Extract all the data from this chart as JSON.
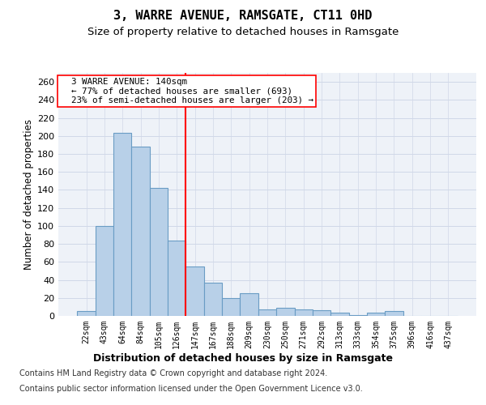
{
  "title": "3, WARRE AVENUE, RAMSGATE, CT11 0HD",
  "subtitle": "Size of property relative to detached houses in Ramsgate",
  "xlabel": "Distribution of detached houses by size in Ramsgate",
  "ylabel": "Number of detached properties",
  "categories": [
    "22sqm",
    "43sqm",
    "64sqm",
    "84sqm",
    "105sqm",
    "126sqm",
    "147sqm",
    "167sqm",
    "188sqm",
    "209sqm",
    "230sqm",
    "250sqm",
    "271sqm",
    "292sqm",
    "313sqm",
    "333sqm",
    "354sqm",
    "375sqm",
    "396sqm",
    "416sqm",
    "437sqm"
  ],
  "values": [
    5,
    100,
    203,
    188,
    142,
    84,
    55,
    37,
    20,
    25,
    7,
    9,
    7,
    6,
    4,
    1,
    4,
    5,
    0,
    0,
    0
  ],
  "bar_color": "#b8d0e8",
  "bar_edge_color": "#6a9cc4",
  "bar_edge_width": 0.8,
  "vline_x_index": 6,
  "vline_color": "red",
  "vline_linewidth": 1.5,
  "annotation_text": "  3 WARRE AVENUE: 140sqm\n  ← 77% of detached houses are smaller (693)\n  23% of semi-detached houses are larger (203) →",
  "annotation_box_color": "white",
  "annotation_box_edge_color": "red",
  "ylim": [
    0,
    270
  ],
  "yticks": [
    0,
    20,
    40,
    60,
    80,
    100,
    120,
    140,
    160,
    180,
    200,
    220,
    240,
    260
  ],
  "grid_color": "#d0d8e8",
  "background_color": "#eef2f8",
  "footer_line1": "Contains HM Land Registry data © Crown copyright and database right 2024.",
  "footer_line2": "Contains public sector information licensed under the Open Government Licence v3.0.",
  "title_fontsize": 11,
  "subtitle_fontsize": 9.5,
  "xlabel_fontsize": 9,
  "ylabel_fontsize": 8.5,
  "footer_fontsize": 7
}
